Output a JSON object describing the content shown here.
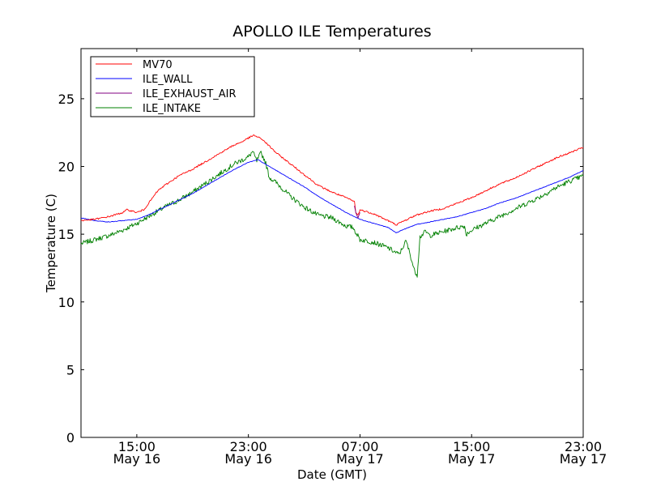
{
  "chart_data": {
    "type": "line",
    "title": "APOLLO ILE Temperatures",
    "xlabel": "Date (GMT)",
    "ylabel": "Temperature (C)",
    "x_unit": "hours since May 16 11:00 GMT",
    "xlim": [
      0,
      36
    ],
    "ylim": [
      0,
      28.7
    ],
    "y_ticks": [
      0,
      5,
      10,
      15,
      20,
      25
    ],
    "x_ticks": [
      {
        "x": 4,
        "time": "15:00",
        "date": "May 16"
      },
      {
        "x": 12,
        "time": "23:00",
        "date": "May 16"
      },
      {
        "x": 20,
        "time": "07:00",
        "date": "May 17"
      },
      {
        "x": 28,
        "time": "15:00",
        "date": "May 17"
      },
      {
        "x": 36,
        "time": "23:00",
        "date": "May 17"
      }
    ],
    "legend_position": "top-left",
    "series": [
      {
        "name": "MV70",
        "color": "#ff0000",
        "noise": 0.06,
        "points": [
          [
            0,
            16.0
          ],
          [
            1,
            16.1
          ],
          [
            2,
            16.3
          ],
          [
            3,
            16.6
          ],
          [
            3.3,
            16.8
          ],
          [
            3.7,
            16.7
          ],
          [
            4,
            16.6
          ],
          [
            4.5,
            16.8
          ],
          [
            5,
            17.5
          ],
          [
            5.5,
            18.2
          ],
          [
            6,
            18.6
          ],
          [
            7,
            19.3
          ],
          [
            8,
            19.8
          ],
          [
            9,
            20.4
          ],
          [
            10,
            21.0
          ],
          [
            11,
            21.6
          ],
          [
            11.5,
            21.8
          ],
          [
            12,
            22.1
          ],
          [
            12.4,
            22.3
          ],
          [
            13,
            22.0
          ],
          [
            14,
            21.0
          ],
          [
            15,
            20.2
          ],
          [
            16,
            19.4
          ],
          [
            17,
            18.6
          ],
          [
            18,
            18.1
          ],
          [
            19,
            17.7
          ],
          [
            19.6,
            17.4
          ],
          [
            19.7,
            16.6
          ],
          [
            19.85,
            16.4
          ],
          [
            20,
            16.8
          ],
          [
            21,
            16.5
          ],
          [
            22,
            16.0
          ],
          [
            22.6,
            15.7
          ],
          [
            23,
            15.9
          ],
          [
            24,
            16.4
          ],
          [
            25,
            16.7
          ],
          [
            26,
            16.9
          ],
          [
            27,
            17.3
          ],
          [
            28,
            17.7
          ],
          [
            29,
            18.2
          ],
          [
            30,
            18.7
          ],
          [
            31,
            19.1
          ],
          [
            32,
            19.6
          ],
          [
            33,
            20.1
          ],
          [
            34,
            20.6
          ],
          [
            35,
            21.0
          ],
          [
            36,
            21.4
          ]
        ]
      },
      {
        "name": "ILE_WALL",
        "color": "#0000ff",
        "noise": 0.02,
        "points": [
          [
            0,
            16.2
          ],
          [
            1,
            16.0
          ],
          [
            2,
            15.9
          ],
          [
            3,
            16.0
          ],
          [
            4,
            16.1
          ],
          [
            5,
            16.5
          ],
          [
            6,
            17.0
          ],
          [
            7,
            17.5
          ],
          [
            8,
            18.0
          ],
          [
            9,
            18.6
          ],
          [
            10,
            19.2
          ],
          [
            11,
            19.8
          ],
          [
            12,
            20.3
          ],
          [
            12.7,
            20.5
          ],
          [
            13,
            20.3
          ],
          [
            14,
            19.7
          ],
          [
            15,
            19.1
          ],
          [
            16,
            18.5
          ],
          [
            17,
            17.8
          ],
          [
            18,
            17.2
          ],
          [
            19,
            16.6
          ],
          [
            20,
            16.1
          ],
          [
            21,
            15.8
          ],
          [
            22,
            15.5
          ],
          [
            22.6,
            15.1
          ],
          [
            23,
            15.3
          ],
          [
            24,
            15.7
          ],
          [
            25,
            15.9
          ],
          [
            26,
            16.1
          ],
          [
            27,
            16.3
          ],
          [
            28,
            16.6
          ],
          [
            29,
            16.9
          ],
          [
            30,
            17.3
          ],
          [
            31,
            17.6
          ],
          [
            32,
            18.0
          ],
          [
            33,
            18.4
          ],
          [
            34,
            18.8
          ],
          [
            35,
            19.2
          ],
          [
            36,
            19.7
          ]
        ]
      },
      {
        "name": "ILE_EXHAUST_AIR",
        "color": "#800080",
        "noise": 0.0,
        "points": [
          [
            19.6,
            17.1
          ],
          [
            19.7,
            16.6
          ],
          [
            19.85,
            16.2
          ],
          [
            20,
            16.6
          ]
        ]
      },
      {
        "name": "ILE_INTAKE",
        "color": "#008000",
        "noise": 0.18,
        "points": [
          [
            0,
            14.3
          ],
          [
            1,
            14.6
          ],
          [
            2,
            14.9
          ],
          [
            3,
            15.3
          ],
          [
            4,
            15.8
          ],
          [
            5,
            16.4
          ],
          [
            6,
            17.0
          ],
          [
            7,
            17.5
          ],
          [
            8,
            18.1
          ],
          [
            9,
            18.8
          ],
          [
            10,
            19.5
          ],
          [
            11,
            20.2
          ],
          [
            12,
            20.7
          ],
          [
            12.3,
            21.1
          ],
          [
            12.6,
            20.4
          ],
          [
            12.9,
            21.0
          ],
          [
            13.2,
            20.4
          ],
          [
            13.5,
            19.2
          ],
          [
            14,
            18.8
          ],
          [
            15,
            17.8
          ],
          [
            16,
            17.0
          ],
          [
            17,
            16.4
          ],
          [
            18,
            16.2
          ],
          [
            19,
            15.6
          ],
          [
            19.5,
            15.5
          ],
          [
            20,
            14.6
          ],
          [
            21,
            14.4
          ],
          [
            22,
            14.0
          ],
          [
            22.8,
            13.5
          ],
          [
            23.3,
            14.5
          ],
          [
            23.6,
            13.5
          ],
          [
            23.9,
            12.3
          ],
          [
            24.1,
            12.0
          ],
          [
            24.3,
            14.8
          ],
          [
            24.7,
            15.2
          ],
          [
            25,
            14.9
          ],
          [
            26,
            15.2
          ],
          [
            27,
            15.5
          ],
          [
            27.5,
            15.6
          ],
          [
            27.6,
            15.0
          ],
          [
            28,
            15.3
          ],
          [
            29,
            15.8
          ],
          [
            30,
            16.3
          ],
          [
            31,
            16.8
          ],
          [
            32,
            17.3
          ],
          [
            33,
            17.8
          ],
          [
            34,
            18.4
          ],
          [
            35,
            18.9
          ],
          [
            36,
            19.3
          ]
        ]
      }
    ]
  }
}
